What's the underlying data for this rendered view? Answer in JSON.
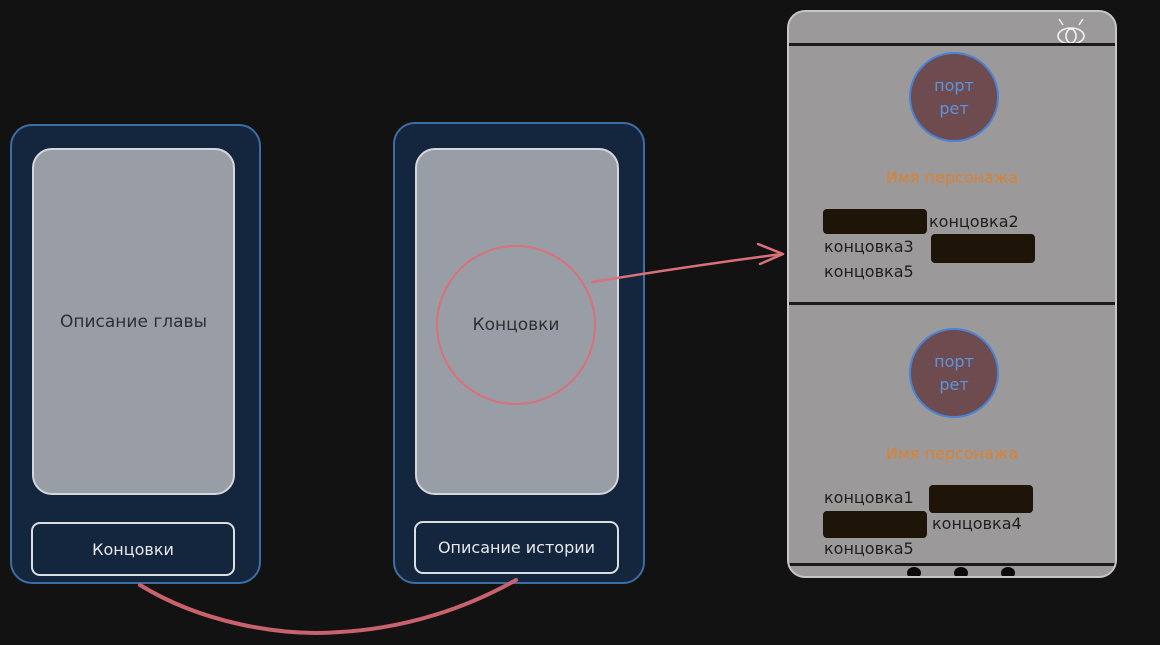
{
  "colors": {
    "background": "#121212",
    "phone_frame": "#13263e",
    "phone_border": "#3d6ea3",
    "screen": "#999ea6",
    "connector": "#d9707a",
    "portrait_fill": "#6e4b4e",
    "portrait_text": "#5d93df",
    "character_name": "#d98230",
    "redacted_block": "#1e1407"
  },
  "screen_chapter": {
    "content_label": "Описание главы",
    "bottom_button_label": "Концовки"
  },
  "screen_story": {
    "circle_label": "Концовки",
    "bottom_button_label": "Описание истории"
  },
  "endings_panel": {
    "header_icon": "eye-icon",
    "characters": [
      {
        "portrait_line1": "порт",
        "portrait_line2": "рет",
        "name": "Имя персонажа",
        "endings": [
          "концовка2",
          "концовка3",
          "концовка5"
        ]
      },
      {
        "portrait_line1": "порт",
        "portrait_line2": "рет",
        "name": "Имя персонажа",
        "endings": [
          "концовка1",
          "концовка4",
          "концовка5"
        ]
      }
    ]
  }
}
